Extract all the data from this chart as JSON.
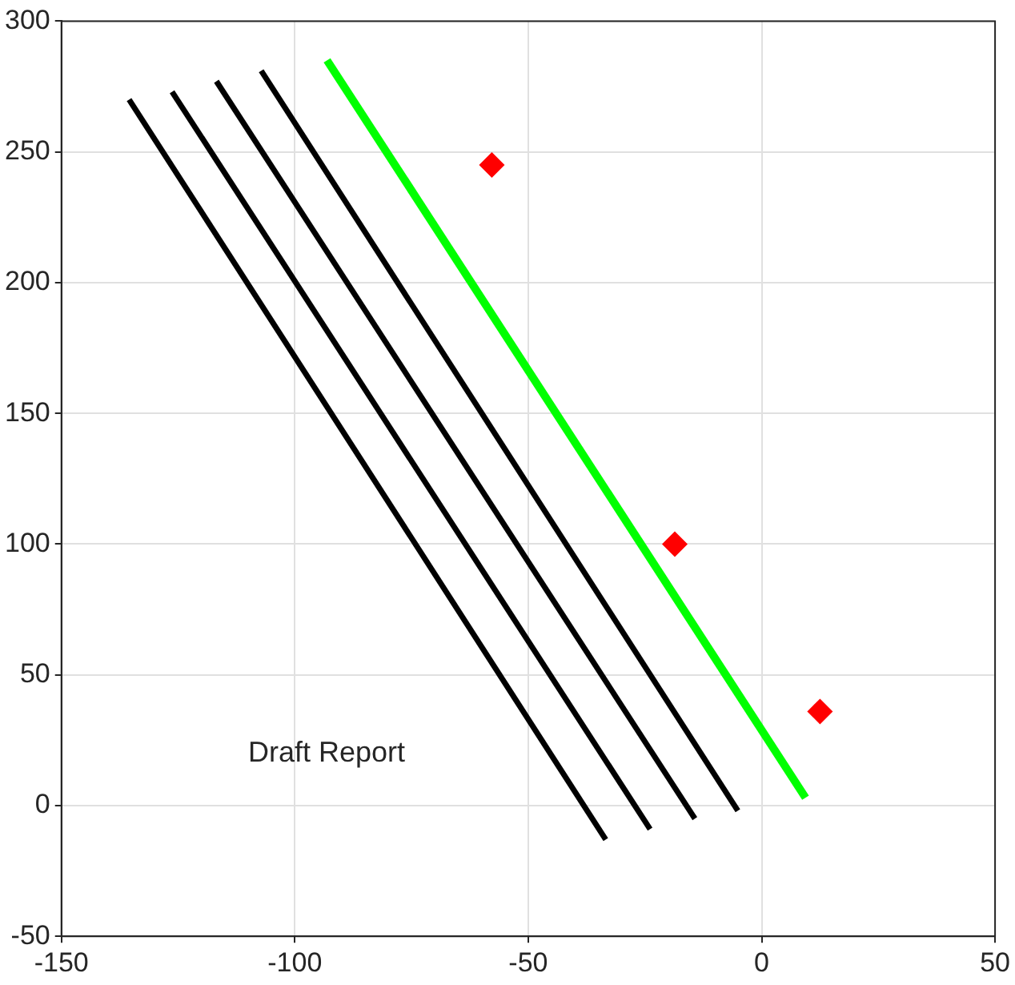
{
  "chart_data": {
    "type": "line",
    "xlim": [
      -150,
      50
    ],
    "xticks": [
      -150,
      -100,
      -50,
      0,
      50
    ],
    "ylim": [
      -50,
      300
    ],
    "yticks": [
      -50,
      0,
      50,
      100,
      150,
      200,
      250,
      300
    ],
    "grid": true,
    "legend": false,
    "annotations": [
      "Draft Report"
    ],
    "series": [
      {
        "color": "#000000",
        "x": [
          -135.5,
          -33.4
        ],
        "values": [
          270,
          -13
        ],
        "marker": "none",
        "line_style": "solid"
      },
      {
        "color": "#000000",
        "x": [
          -126.3,
          -23.9
        ],
        "values": [
          273,
          -9
        ],
        "marker": "none",
        "line_style": "solid"
      },
      {
        "color": "#000000",
        "x": [
          -116.8,
          -14.3
        ],
        "values": [
          277,
          -5
        ],
        "marker": "none",
        "line_style": "solid"
      },
      {
        "color": "#000000",
        "x": [
          -107.2,
          -5.1
        ],
        "values": [
          281,
          -2
        ],
        "marker": "none",
        "line_style": "solid"
      },
      {
        "color": "#00ff00",
        "x": [
          -93.1,
          9.4
        ],
        "values": [
          285,
          3
        ],
        "marker": "none",
        "line_style": "solid"
      },
      {
        "type": "scatter",
        "color": "#ff0000",
        "x": [
          -57.8,
          -18.6,
          12.5
        ],
        "values": [
          245,
          100,
          36
        ],
        "marker": "diamond"
      }
    ]
  }
}
